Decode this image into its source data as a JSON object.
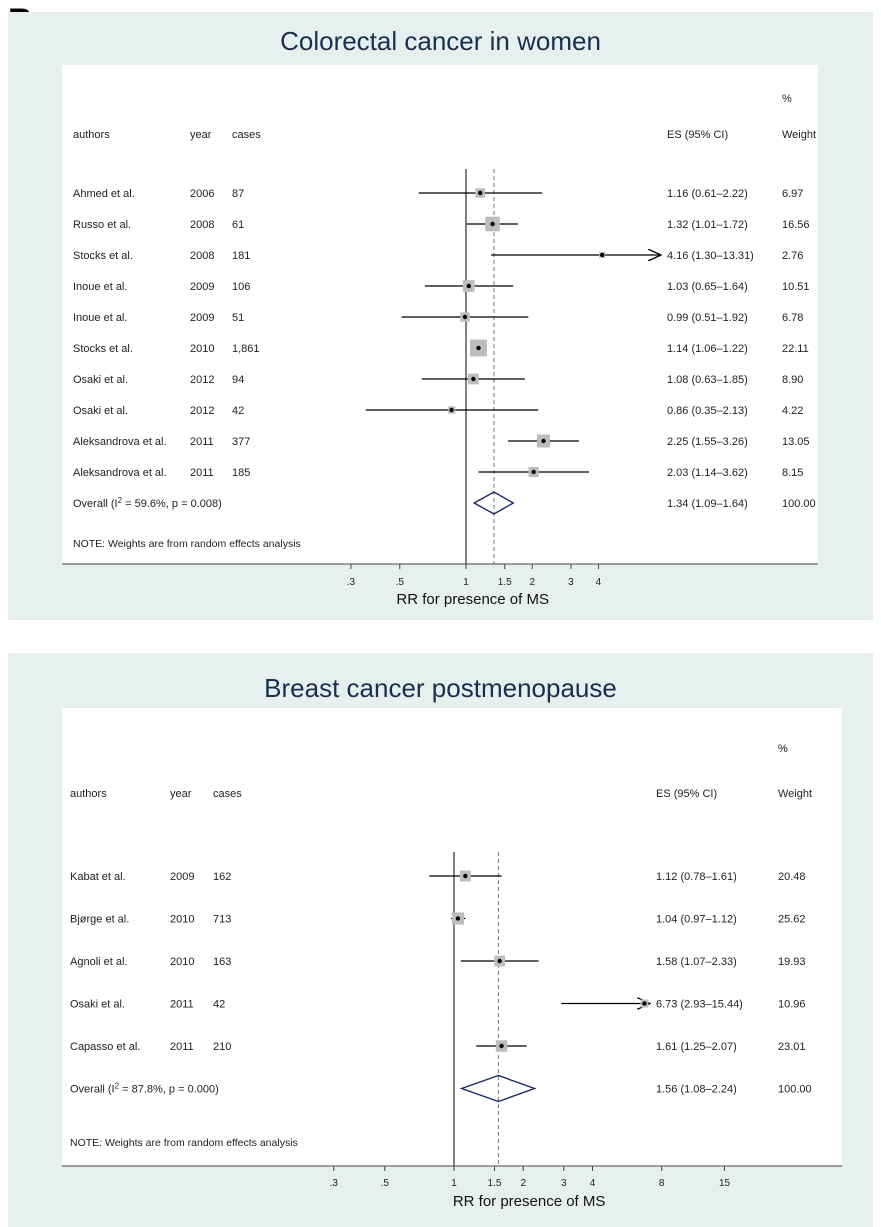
{
  "panel_label": "B",
  "chart_data": [
    {
      "type": "forest",
      "title": "Colorectal cancer in women",
      "xlabel": "RR for presence of MS",
      "columns": {
        "authors": "authors",
        "year": "year",
        "cases": "cases",
        "es": "ES (95% CI)",
        "weight_pct": "%",
        "weight": "Weight"
      },
      "xticks": [
        ".3",
        ".5",
        "1",
        "1.5",
        "2",
        "3",
        "4"
      ],
      "xscale": "log",
      "xlim": [
        0.3,
        4
      ],
      "null_line": 1,
      "overall_line": 1.34,
      "studies": [
        {
          "author": "Ahmed et al.",
          "year": "2006",
          "cases": "87",
          "es": 1.16,
          "lo": 0.61,
          "hi": 2.22,
          "es_text": "1.16 (0.61–2.22)",
          "weight": "6.97"
        },
        {
          "author": "Russo et al.",
          "year": "2008",
          "cases": "61",
          "es": 1.32,
          "lo": 1.01,
          "hi": 1.72,
          "es_text": "1.32 (1.01–1.72)",
          "weight": "16.56"
        },
        {
          "author": "Stocks et al.",
          "year": "2008",
          "cases": "181",
          "es": 4.16,
          "lo": 1.3,
          "hi": 13.31,
          "es_text": "4.16 (1.30–13.31)",
          "weight": "2.76"
        },
        {
          "author": "Inoue et al.",
          "year": "2009",
          "cases": "106",
          "es": 1.03,
          "lo": 0.65,
          "hi": 1.64,
          "es_text": "1.03 (0.65–1.64)",
          "weight": "10.51"
        },
        {
          "author": "Inoue et al.",
          "year": "2009",
          "cases": "51",
          "es": 0.99,
          "lo": 0.51,
          "hi": 1.92,
          "es_text": "0.99 (0.51–1.92)",
          "weight": "6.78"
        },
        {
          "author": "Stocks et al.",
          "year": "2010",
          "cases": "1,861",
          "es": 1.14,
          "lo": 1.06,
          "hi": 1.22,
          "es_text": "1.14 (1.06–1.22)",
          "weight": "22.11"
        },
        {
          "author": "Osaki et al.",
          "year": "2012",
          "cases": "94",
          "es": 1.08,
          "lo": 0.63,
          "hi": 1.85,
          "es_text": "1.08 (0.63–1.85)",
          "weight": "8.90"
        },
        {
          "author": "Osaki et al.",
          "year": "2012",
          "cases": "42",
          "es": 0.86,
          "lo": 0.35,
          "hi": 2.13,
          "es_text": "0.86 (0.35–2.13)",
          "weight": "4.22"
        },
        {
          "author": "Aleksandrova et al.",
          "year": "2011",
          "cases": "377",
          "es": 2.25,
          "lo": 1.55,
          "hi": 3.26,
          "es_text": "2.25 (1.55–3.26)",
          "weight": "13.05"
        },
        {
          "author": "Aleksandrova et al.",
          "year": "2011",
          "cases": "185",
          "es": 2.03,
          "lo": 1.14,
          "hi": 3.62,
          "es_text": "2.03 (1.14–3.62)",
          "weight": "8.15"
        }
      ],
      "overall": {
        "label_prefix": "Overall  (I",
        "label_sup": "2",
        "label_suffix": " = 59.6%, p = 0.008)",
        "es": 1.34,
        "lo": 1.09,
        "hi": 1.64,
        "es_text": "1.34 (1.09–1.64)",
        "weight": "100.00"
      },
      "note": "NOTE: Weights are from random effects analysis"
    },
    {
      "type": "forest",
      "title": "Breast cancer postmenopause",
      "xlabel": "RR for presence of MS",
      "columns": {
        "authors": "authors",
        "year": "year",
        "cases": "cases",
        "es": "ES (95% CI)",
        "weight_pct": "%",
        "weight": "Weight"
      },
      "xticks": [
        ".3",
        ".5",
        "1",
        "1.5",
        "2",
        "3",
        "4",
        "8",
        "15"
      ],
      "xscale": "log",
      "xlim": [
        0.3,
        15
      ],
      "null_line": 1,
      "overall_line": 1.56,
      "studies": [
        {
          "author": "Kabat et al.",
          "year": "2009",
          "cases": "162",
          "es": 1.12,
          "lo": 0.78,
          "hi": 1.61,
          "es_text": "1.12 (0.78–1.61)",
          "weight": "20.48"
        },
        {
          "author": "Bjørge et al.",
          "year": "2010",
          "cases": "713",
          "es": 1.04,
          "lo": 0.97,
          "hi": 1.12,
          "es_text": "1.04 (0.97–1.12)",
          "weight": "25.62"
        },
        {
          "author": "Agnoli et al.",
          "year": "2010",
          "cases": "163",
          "es": 1.58,
          "lo": 1.07,
          "hi": 2.33,
          "es_text": "1.58 (1.07–2.33)",
          "weight": "19.93"
        },
        {
          "author": "Osaki et al.",
          "year": "2011",
          "cases": "42",
          "es": 6.73,
          "lo": 2.93,
          "hi": 15.44,
          "es_text": "6.73 (2.93–15.44)",
          "weight": "10.96"
        },
        {
          "author": "Capasso et al.",
          "year": "2011",
          "cases": "210",
          "es": 1.61,
          "lo": 1.25,
          "hi": 2.07,
          "es_text": "1.61 (1.25–2.07)",
          "weight": "23.01"
        }
      ],
      "overall": {
        "label_prefix": "Overall  (I",
        "label_sup": "2",
        "label_suffix": " = 87.8%, p = 0.000)",
        "es": 1.56,
        "lo": 1.08,
        "hi": 2.24,
        "es_text": "1.56 (1.08–2.24)",
        "weight": "100.00"
      },
      "note": "NOTE: Weights are from random effects analysis"
    }
  ]
}
